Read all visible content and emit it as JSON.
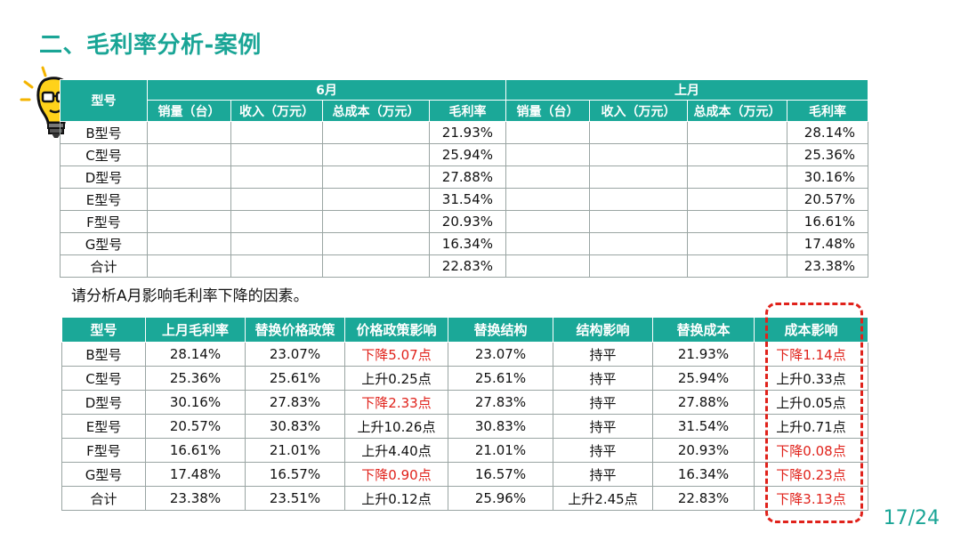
{
  "title": "二、毛利率分析-案例",
  "table1": {
    "model_header": "型号",
    "group_current": "6月",
    "group_previous": "上月",
    "sub_headers": [
      "销量（台）",
      "收入（万元）",
      "总成本（万元）",
      "毛利率"
    ],
    "rows": [
      {
        "model": "B型号",
        "current_margin": "21.93%",
        "previous_margin": "28.14%"
      },
      {
        "model": "C型号",
        "current_margin": "25.94%",
        "previous_margin": "25.36%"
      },
      {
        "model": "D型号",
        "current_margin": "27.88%",
        "previous_margin": "30.16%"
      },
      {
        "model": "E型号",
        "current_margin": "31.54%",
        "previous_margin": "20.57%"
      },
      {
        "model": "F型号",
        "current_margin": "20.93%",
        "previous_margin": "16.61%"
      },
      {
        "model": "G型号",
        "current_margin": "16.34%",
        "previous_margin": "17.48%"
      },
      {
        "model": "合计",
        "current_margin": "22.83%",
        "previous_margin": "23.38%"
      }
    ]
  },
  "question": "请分析A月影响毛利率下降的因素。",
  "table2": {
    "headers": [
      "型号",
      "上月毛利率",
      "替换价格政策",
      "价格政策影响",
      "替换结构",
      "结构影响",
      "替换成本",
      "成本影响"
    ],
    "rows": [
      {
        "cells": [
          "B型号",
          "28.14%",
          "23.07%",
          "下降5.07点",
          "23.07%",
          "持平",
          "21.93%",
          "下降1.14点"
        ],
        "red": [
          3,
          7
        ]
      },
      {
        "cells": [
          "C型号",
          "25.36%",
          "25.61%",
          "上升0.25点",
          "25.61%",
          "持平",
          "25.94%",
          "上升0.33点"
        ],
        "red": []
      },
      {
        "cells": [
          "D型号",
          "30.16%",
          "27.83%",
          "下降2.33点",
          "27.83%",
          "持平",
          "27.88%",
          "上升0.05点"
        ],
        "red": [
          3
        ]
      },
      {
        "cells": [
          "E型号",
          "20.57%",
          "30.83%",
          "上升10.26点",
          "30.83%",
          "持平",
          "31.54%",
          "上升0.71点"
        ],
        "red": []
      },
      {
        "cells": [
          "F型号",
          "16.61%",
          "21.01%",
          "上升4.40点",
          "21.01%",
          "持平",
          "20.93%",
          "下降0.08点"
        ],
        "red": [
          7
        ]
      },
      {
        "cells": [
          "G型号",
          "17.48%",
          "16.57%",
          "下降0.90点",
          "16.57%",
          "持平",
          "16.34%",
          "下降0.23点"
        ],
        "red": [
          3,
          7
        ]
      },
      {
        "cells": [
          "合计",
          "23.38%",
          "23.51%",
          "上升0.12点",
          "25.96%",
          "上升2.45点",
          "22.83%",
          "下降3.13点"
        ],
        "red": [
          7
        ]
      }
    ]
  },
  "page_number": "17/24",
  "colors": {
    "accent": "#1ba898",
    "negative": "#e0221b"
  }
}
